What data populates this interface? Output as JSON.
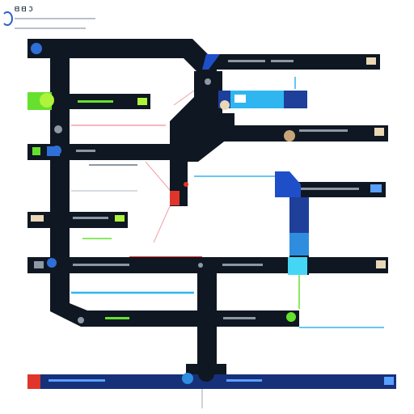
{
  "header": {
    "title": "ᗺ ᗺ ℑ",
    "subtitle_lines": [
      "",
      ""
    ]
  },
  "bars": [
    {
      "id": "bar-top-right",
      "label": "",
      "icon": "card-icon"
    },
    {
      "id": "bar-lime",
      "label": "",
      "icon": "card-icon"
    },
    {
      "id": "bar-blue-tab",
      "label": "",
      "icon": "card-icon"
    },
    {
      "id": "bar-mid-right",
      "label": "",
      "icon": "face-icon"
    },
    {
      "id": "bar-left-small",
      "label": "",
      "icon": "gear-icon"
    },
    {
      "id": "bar-right-blue",
      "label": "",
      "icon": "card-icon"
    },
    {
      "id": "bar-left-card",
      "label": "",
      "icon": "card-icon"
    },
    {
      "id": "bar-wide-middle",
      "label": "",
      "icon": "card-icon"
    },
    {
      "id": "bar-lower",
      "label": "",
      "icon": "card-icon"
    },
    {
      "id": "bar-bottom",
      "label": "",
      "icon": "card-icon"
    }
  ],
  "colors": {
    "track": "#0f1722",
    "accent_blue": "#1e4fc9",
    "accent_cyan": "#2fb6f0",
    "accent_lime": "#66e02e",
    "accent_red": "#e0352b",
    "accent_pink": "#f2a0a8",
    "bottom_bar": "#17307a"
  }
}
